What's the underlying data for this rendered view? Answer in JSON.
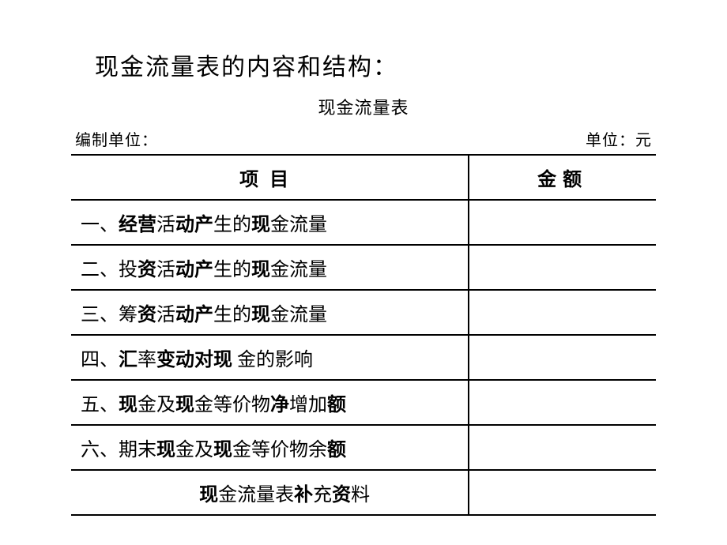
{
  "title": "现金流量表的内容和结构：",
  "subtitle": "现金流量表",
  "header_left": "编制单位：",
  "header_right": "单位：元",
  "table": {
    "columns": {
      "item": "项目",
      "amount": "金额"
    },
    "rows": [
      {
        "label_parts": [
          {
            "text": "一、",
            "bold": false
          },
          {
            "text": "经营",
            "bold": true
          },
          {
            "text": "活",
            "bold": false
          },
          {
            "text": "动产",
            "bold": true
          },
          {
            "text": "生的",
            "bold": false
          },
          {
            "text": "现",
            "bold": true
          },
          {
            "text": "金流量",
            "bold": false
          }
        ],
        "amount": ""
      },
      {
        "label_parts": [
          {
            "text": "二、投",
            "bold": false
          },
          {
            "text": "资",
            "bold": true
          },
          {
            "text": "活",
            "bold": false
          },
          {
            "text": "动产",
            "bold": true
          },
          {
            "text": "生的",
            "bold": false
          },
          {
            "text": "现",
            "bold": true
          },
          {
            "text": "金流量",
            "bold": false
          }
        ],
        "amount": ""
      },
      {
        "label_parts": [
          {
            "text": "三、筹",
            "bold": false
          },
          {
            "text": "资",
            "bold": true
          },
          {
            "text": "活",
            "bold": false
          },
          {
            "text": "动产",
            "bold": true
          },
          {
            "text": "生的",
            "bold": false
          },
          {
            "text": "现",
            "bold": true
          },
          {
            "text": "金流量",
            "bold": false
          }
        ],
        "amount": ""
      },
      {
        "label_parts": [
          {
            "text": "四、",
            "bold": false
          },
          {
            "text": "汇",
            "bold": true
          },
          {
            "text": "率",
            "bold": false
          },
          {
            "text": "变动对现",
            "bold": true
          },
          {
            "text": " 金的影响",
            "bold": false
          }
        ],
        "amount": ""
      },
      {
        "label_parts": [
          {
            "text": "五、",
            "bold": false
          },
          {
            "text": "现",
            "bold": true
          },
          {
            "text": "金及",
            "bold": false
          },
          {
            "text": "现",
            "bold": true
          },
          {
            "text": "金等价物",
            "bold": false
          },
          {
            "text": "净",
            "bold": true
          },
          {
            "text": "增加",
            "bold": false
          },
          {
            "text": "额",
            "bold": true
          }
        ],
        "amount": ""
      },
      {
        "label_parts": [
          {
            "text": "六、期末",
            "bold": false
          },
          {
            "text": "现",
            "bold": true
          },
          {
            "text": "金及",
            "bold": false
          },
          {
            "text": "现",
            "bold": true
          },
          {
            "text": "金等价物余",
            "bold": false
          },
          {
            "text": "额",
            "bold": true
          }
        ],
        "amount": ""
      },
      {
        "label_parts": [
          {
            "text": "现",
            "bold": true
          },
          {
            "text": "金流量表",
            "bold": false
          },
          {
            "text": "补",
            "bold": true
          },
          {
            "text": "充",
            "bold": false
          },
          {
            "text": "资",
            "bold": true
          },
          {
            "text": "料",
            "bold": false
          }
        ],
        "amount": "",
        "supplement": true
      }
    ]
  },
  "styling": {
    "background_color": "#ffffff",
    "border_color": "#000000",
    "border_width": 2,
    "title_fontsize": 30,
    "subtitle_fontsize": 22,
    "header_fontsize": 20,
    "cell_fontsize": 24,
    "font_family": "SimSun"
  }
}
